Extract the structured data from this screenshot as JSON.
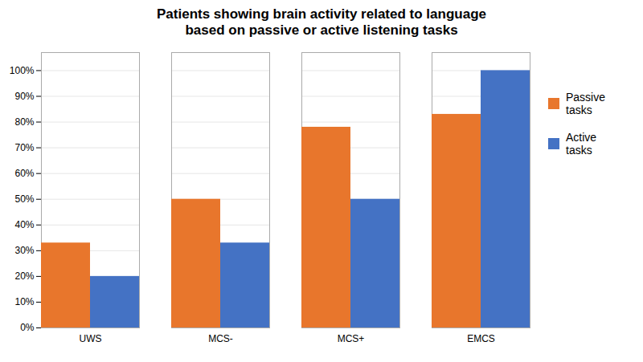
{
  "chart_data": {
    "type": "bar",
    "title": "Patients showing brain activity related to language\nbased on passive or active listening tasks",
    "categories": [
      "UWS",
      "MCS-",
      "MCS+",
      "EMCS"
    ],
    "series": [
      {
        "name": "Passive\ntasks",
        "color": "#E8762C",
        "values": [
          33,
          50,
          78,
          83
        ]
      },
      {
        "name": "Active\ntasks",
        "color": "#4472C4",
        "values": [
          20,
          33,
          50,
          100
        ]
      }
    ],
    "ylim": [
      0,
      107
    ],
    "yticks": [
      {
        "value": 0,
        "label": "0%"
      },
      {
        "value": 10,
        "label": "10%"
      },
      {
        "value": 20,
        "label": "20%"
      },
      {
        "value": 30,
        "label": "30%"
      },
      {
        "value": 40,
        "label": "40%"
      },
      {
        "value": 50,
        "label": "50%"
      },
      {
        "value": 60,
        "label": "60%"
      },
      {
        "value": 70,
        "label": "70%"
      },
      {
        "value": 80,
        "label": "80%"
      },
      {
        "value": 90,
        "label": "90%"
      },
      {
        "value": 100,
        "label": "100%"
      }
    ],
    "grid": true,
    "legend": "right"
  }
}
